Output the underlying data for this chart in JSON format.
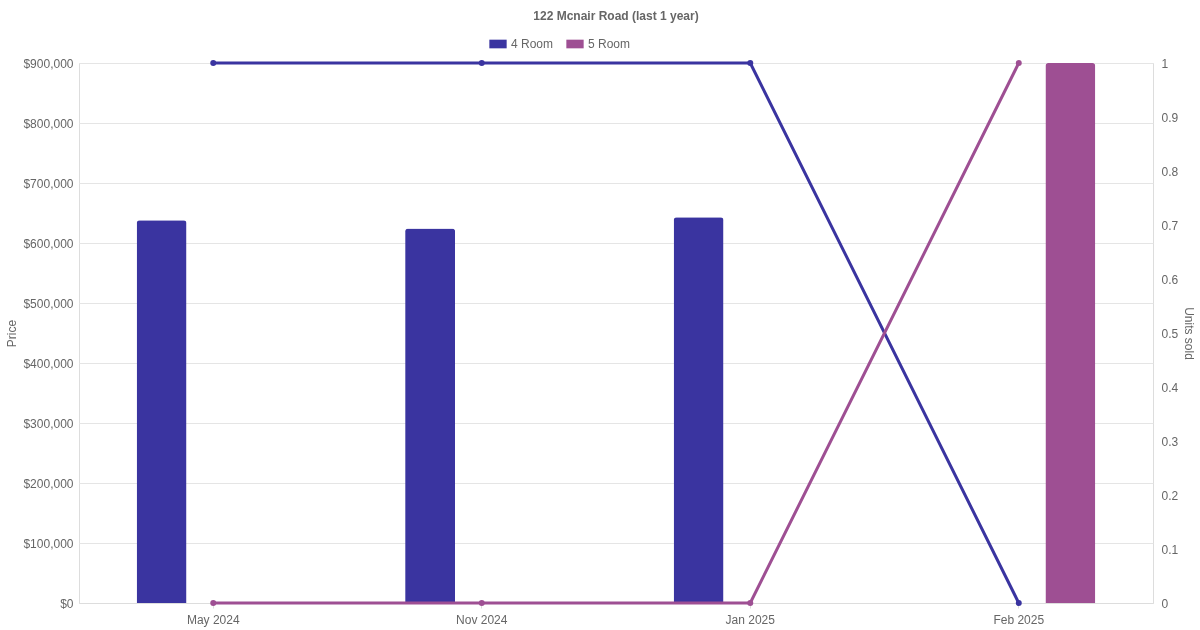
{
  "chart_data": {
    "type": "bar",
    "title": "122 Mcnair Road (last 1 year)",
    "ylabel": "Price",
    "y2label": "Units sold",
    "categories": [
      "May 2024",
      "Nov 2024",
      "Jan 2025",
      "Feb 2025"
    ],
    "series": [
      {
        "name": "4 Room",
        "color": "#3a34a0",
        "values": [
          638000,
          624000,
          643000,
          null
        ]
      },
      {
        "name": "5 Room",
        "color": "#9e4f93",
        "values": [
          null,
          null,
          null,
          900000
        ]
      },
      {
        "type": "line",
        "axis": "y2",
        "color": "#3a34a0",
        "values": [
          1,
          1,
          1,
          0
        ]
      },
      {
        "type": "line",
        "axis": "y2",
        "color": "#9e4f93",
        "values": [
          0,
          0,
          0,
          1
        ]
      }
    ],
    "ylim": [
      0,
      900000
    ],
    "yticks": [
      {
        "value": 0,
        "label": "$0"
      },
      {
        "value": 100000,
        "label": "$100,000"
      },
      {
        "value": 200000,
        "label": "$200,000"
      },
      {
        "value": 300000,
        "label": "$300,000"
      },
      {
        "value": 400000,
        "label": "$400,000"
      },
      {
        "value": 500000,
        "label": "$500,000"
      },
      {
        "value": 600000,
        "label": "$600,000"
      },
      {
        "value": 700000,
        "label": "$700,000"
      },
      {
        "value": 800000,
        "label": "$800,000"
      },
      {
        "value": 900000,
        "label": "$900,000"
      }
    ],
    "y2lim": [
      0,
      1
    ],
    "y2ticks": [
      0,
      0.1,
      0.2,
      0.3,
      0.4,
      0.5,
      0.6,
      0.7,
      0.8,
      0.9,
      1
    ],
    "grid": "y",
    "legend": "top",
    "marker": "circle",
    "line_style": "solid"
  }
}
